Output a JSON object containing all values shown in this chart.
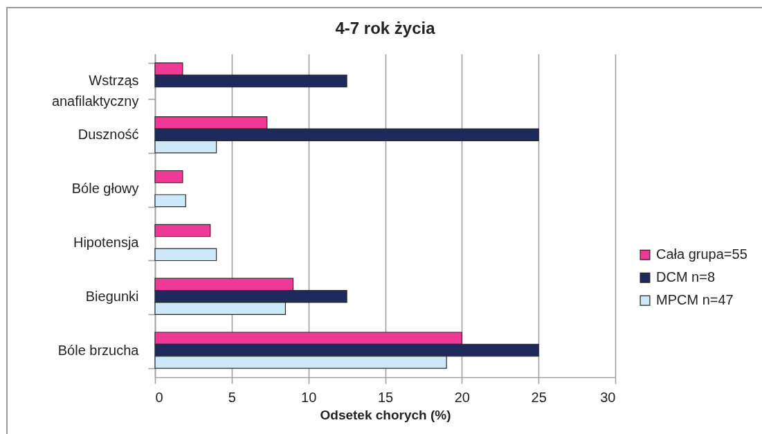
{
  "chart_data": {
    "type": "bar",
    "orientation": "horizontal",
    "title": "4-7 rok życia",
    "xlabel": "Odsetek chorych (%)",
    "categories": [
      "Wstrząs anafilaktyczny",
      "Duszność",
      "Bóle głowy",
      "Hipotensja",
      "Biegunki",
      "Bóle brzucha"
    ],
    "series": [
      {
        "name": "Cała grupa=55",
        "color": "#ee3a96",
        "values": [
          1.8,
          7.3,
          1.8,
          3.6,
          9,
          20
        ]
      },
      {
        "name": "DCM n=8",
        "color": "#1f2a5c",
        "values": [
          12.5,
          25,
          null,
          null,
          12.5,
          25
        ]
      },
      {
        "name": "MPCM n=47",
        "color": "#cde9f8",
        "values": [
          null,
          4,
          2,
          4,
          8.5,
          19
        ]
      }
    ],
    "xlim": [
      0,
      30
    ],
    "xticks": [
      0,
      5,
      10,
      15,
      20,
      25,
      30
    ],
    "grid": "x",
    "legend": "right"
  }
}
